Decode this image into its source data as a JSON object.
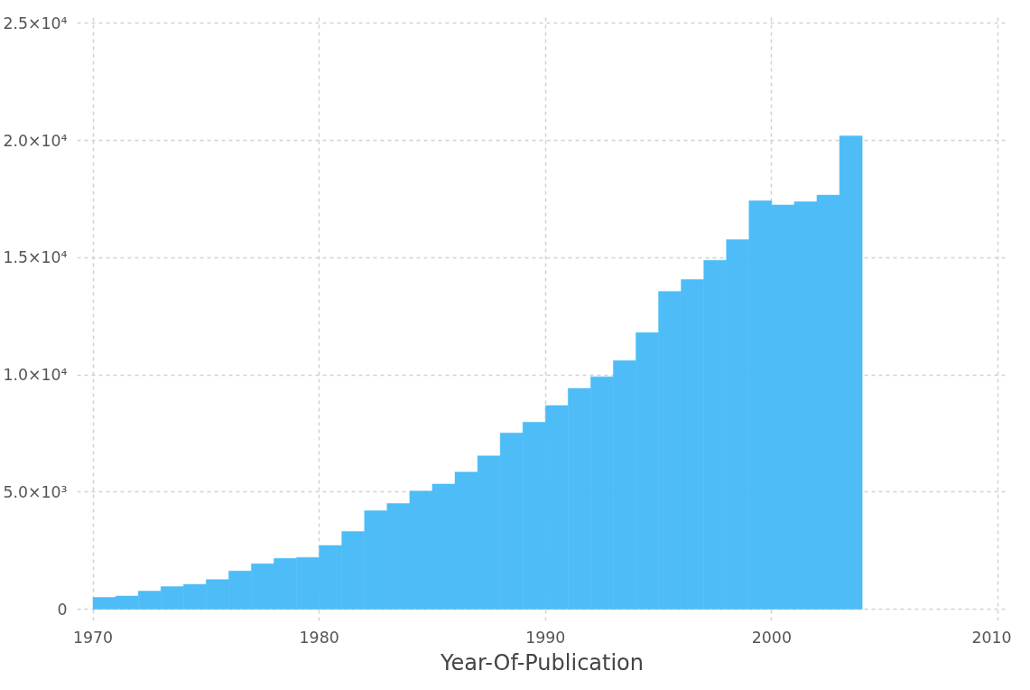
{
  "chart_data": {
    "type": "histogram",
    "xlabel": "Year-Of-Publication",
    "bins": [
      1970,
      1971,
      1972,
      1973,
      1974,
      1975,
      1976,
      1977,
      1978,
      1979,
      1980,
      1981,
      1982,
      1983,
      1984,
      1985,
      1986,
      1987,
      1988,
      1989,
      1990,
      1991,
      1992,
      1993,
      1994,
      1995,
      1996,
      1997,
      1998,
      1999,
      2000,
      2001,
      2002,
      2003,
      2004
    ],
    "values": [
      500,
      560,
      770,
      960,
      1060,
      1260,
      1630,
      1940,
      2170,
      2210,
      2720,
      3320,
      4200,
      4510,
      5040,
      5340,
      5850,
      6540,
      7520,
      7980,
      8690,
      9420,
      9920,
      10610,
      11800,
      13560,
      14070,
      14890,
      15770,
      17430,
      17250,
      17390,
      17670,
      20200
    ],
    "color": "#4dbcf7",
    "xlim": [
      1969.3,
      2010.4
    ],
    "ylim": [
      -500,
      25400
    ],
    "xticks": [
      1970,
      1980,
      1990,
      2000,
      2010
    ],
    "yticks": [
      0,
      {
        "value": 5000,
        "label": "5.0×10³"
      },
      {
        "value": 10000,
        "label": "1.0×10⁴"
      },
      {
        "value": 15000,
        "label": "1.5×10⁴"
      },
      {
        "value": 20000,
        "label": "2.0×10⁴"
      },
      {
        "value": 25000,
        "label": "2.5×10⁴"
      }
    ],
    "grid": true
  }
}
